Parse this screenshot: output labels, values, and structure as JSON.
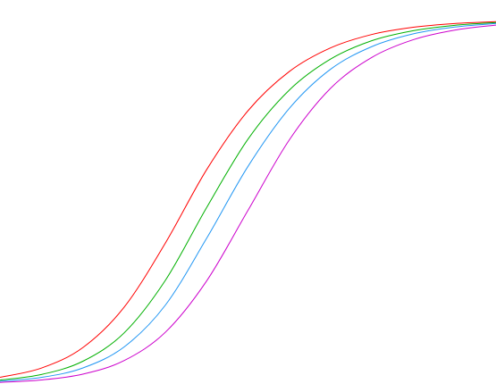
{
  "chart_data": {
    "type": "line",
    "title": "",
    "xlabel": "",
    "ylabel": "",
    "grid": false,
    "legend": "none",
    "axes_visible": false,
    "xlim": [
      -6,
      6
    ],
    "ylim": [
      0,
      1
    ],
    "x": [
      -6,
      -5,
      -4,
      -3,
      -2,
      -1,
      0,
      1,
      2,
      3,
      4,
      5,
      6
    ],
    "series": [
      {
        "color": "#ff0000",
        "values": [
          0.0183,
          0.0436,
          0.0996,
          0.2103,
          0.3867,
          0.5884,
          0.75,
          0.8577,
          0.9226,
          0.9594,
          0.9791,
          0.9894,
          0.9946
        ]
      },
      {
        "color": "#00b000",
        "values": [
          0.0107,
          0.0261,
          0.0622,
          0.1399,
          0.2843,
          0.4843,
          0.672,
          0.8068,
          0.8919,
          0.9424,
          0.9697,
          0.9844,
          0.992
        ]
      },
      {
        "color": "#2196f3",
        "values": [
          0.0074,
          0.018,
          0.0438,
          0.1015,
          0.2163,
          0.4,
          0.5973,
          0.7565,
          0.8641,
          0.9262,
          0.961,
          0.9797,
          0.9895
        ]
      },
      {
        "color": "#cc00cc",
        "values": [
          0.0045,
          0.0111,
          0.027,
          0.0641,
          0.142,
          0.283,
          0.4767,
          0.6701,
          0.8119,
          0.8967,
          0.945,
          0.9712,
          0.9851
        ]
      }
    ]
  }
}
